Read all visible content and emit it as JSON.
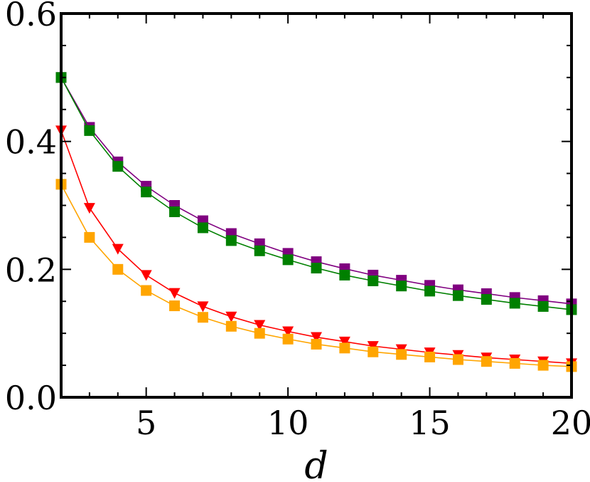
{
  "chart_data": {
    "type": "line",
    "title": "",
    "xlabel": "d",
    "ylabel": "",
    "xlim": [
      2,
      20
    ],
    "ylim": [
      0.0,
      0.6
    ],
    "x_ticks": [
      5,
      10,
      15,
      20
    ],
    "x_tick_labels": [
      "5",
      "10",
      "15",
      "20"
    ],
    "y_ticks": [
      0.0,
      0.2,
      0.4,
      0.6
    ],
    "y_tick_labels": [
      "0.0",
      "0.2",
      "0.4",
      "0.6"
    ],
    "grid": false,
    "x": [
      2,
      3,
      4,
      5,
      6,
      7,
      8,
      9,
      10,
      11,
      12,
      13,
      14,
      15,
      16,
      17,
      18,
      19,
      20
    ],
    "series": [
      {
        "color": "#800080",
        "marker": "square",
        "values": [
          0.5,
          0.422,
          0.368,
          0.33,
          0.3,
          0.276,
          0.256,
          0.24,
          0.225,
          0.212,
          0.201,
          0.191,
          0.183,
          0.175,
          0.168,
          0.162,
          0.156,
          0.151,
          0.146
        ]
      },
      {
        "color": "#008000",
        "marker": "square",
        "values": [
          0.5,
          0.417,
          0.361,
          0.321,
          0.29,
          0.265,
          0.245,
          0.229,
          0.215,
          0.202,
          0.191,
          0.182,
          0.174,
          0.166,
          0.159,
          0.153,
          0.147,
          0.142,
          0.137
        ]
      },
      {
        "color": "#ff0000",
        "marker": "triangle-down",
        "values": [
          0.417,
          0.296,
          0.232,
          0.191,
          0.163,
          0.142,
          0.126,
          0.113,
          0.103,
          0.094,
          0.087,
          0.08,
          0.075,
          0.07,
          0.066,
          0.062,
          0.059,
          0.056,
          0.053
        ]
      },
      {
        "color": "#ffa500",
        "marker": "square",
        "values": [
          0.333,
          0.25,
          0.2,
          0.167,
          0.143,
          0.125,
          0.111,
          0.1,
          0.091,
          0.083,
          0.077,
          0.071,
          0.067,
          0.063,
          0.059,
          0.056,
          0.053,
          0.05,
          0.048
        ]
      }
    ]
  }
}
